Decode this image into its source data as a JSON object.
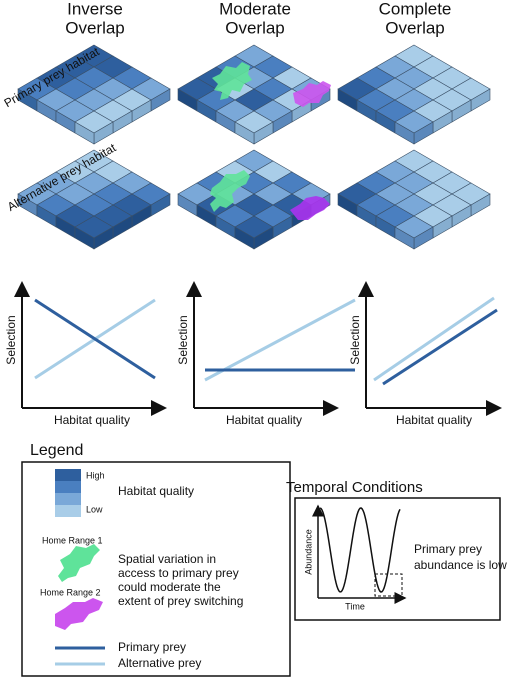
{
  "columns": [
    {
      "title": [
        "Inverse",
        "Overlap"
      ]
    },
    {
      "title": [
        "Moderate",
        "Overlap"
      ]
    },
    {
      "title": [
        "Complete",
        "Overlap"
      ]
    }
  ],
  "row_labels": [
    "Primary prey habitat",
    "Alternative prey habitat"
  ],
  "axis_labels": {
    "x": "Habitat quality",
    "y": "Selection"
  },
  "legend": {
    "title": "Legend",
    "scale_high": "High",
    "scale_low": "Low",
    "scale_label": "Habitat quality",
    "home_range_1": "Home Range 1",
    "home_range_2": "Home Range 2",
    "home_range_text": [
      "Spatial variation in",
      "access to primary prey",
      "could moderate the",
      "extent of prey switching"
    ],
    "primary": "Primary prey",
    "alternative": "Alternative prey"
  },
  "temporal": {
    "title": "Temporal Conditions",
    "y_label": "Abundance",
    "x_label": "Time",
    "note": [
      "Primary prey",
      "abundance is low"
    ]
  }
}
